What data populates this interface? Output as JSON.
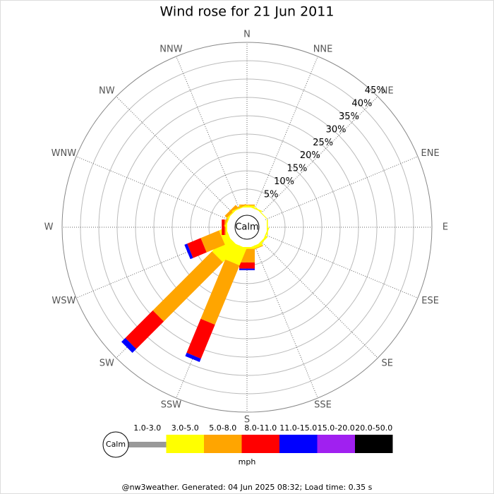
{
  "chart_data": {
    "type": "windrose",
    "title": "Wind rose for 21 Jun 2011",
    "categories": [
      "N",
      "NNE",
      "NE",
      "ENE",
      "E",
      "ESE",
      "SE",
      "SSE",
      "S",
      "SSW",
      "SW",
      "WSW",
      "W",
      "WNW",
      "NW",
      "NNW"
    ],
    "series": [
      {
        "name": "1.0-3.0",
        "color": "#999999",
        "values": [
          0,
          0,
          0,
          0,
          0,
          0,
          0,
          0,
          0,
          0,
          0,
          0,
          0,
          0,
          0,
          0
        ]
      },
      {
        "name": "3.0-5.0",
        "color": "#ffff00",
        "values": [
          0.5,
          0.3,
          0.2,
          0,
          0.3,
          0.3,
          0.5,
          0.8,
          0.5,
          5,
          6,
          2,
          0.4,
          0.3,
          0.3,
          0.3
        ]
      },
      {
        "name": "5.0-8.0",
        "color": "#ffa500",
        "values": [
          0.3,
          0,
          0,
          0,
          0,
          0,
          0,
          0.2,
          3.7,
          17.5,
          22.8,
          5.4,
          0.3,
          0.3,
          0.8,
          0.3
        ]
      },
      {
        "name": "8.0-11.0",
        "color": "#ff0000",
        "values": [
          0,
          0,
          0,
          0,
          0,
          0,
          0,
          0,
          1.7,
          10,
          10.6,
          4,
          0.8,
          0,
          0,
          0
        ]
      },
      {
        "name": "11.0-15.0",
        "color": "#0000ff",
        "values": [
          0,
          0,
          0,
          0,
          0,
          0,
          0,
          0,
          0.4,
          1,
          1.5,
          0.8,
          0,
          0,
          0,
          0
        ]
      },
      {
        "name": "15.0-20.0",
        "color": "#a020f0",
        "values": [
          0,
          0,
          0,
          0,
          0,
          0,
          0,
          0,
          0,
          0,
          0,
          0,
          0,
          0,
          0,
          0
        ]
      },
      {
        "name": "20.0-50.0",
        "color": "#000000",
        "values": [
          0,
          0,
          0,
          0,
          0,
          0,
          0,
          0,
          0,
          0,
          0,
          0,
          0,
          0,
          0,
          0
        ]
      }
    ],
    "rlim": [
      0,
      45
    ],
    "rticks": [
      {
        "value": 5,
        "label": "5%"
      },
      {
        "value": 10,
        "label": "10%"
      },
      {
        "value": 15,
        "label": "15%"
      },
      {
        "value": 20,
        "label": "20%"
      },
      {
        "value": 25,
        "label": "25%"
      },
      {
        "value": 30,
        "label": "30%"
      },
      {
        "value": 35,
        "label": "35%"
      },
      {
        "value": 40,
        "label": "40%"
      },
      {
        "value": 45,
        "label": "45%"
      }
    ],
    "center_label": "Calm",
    "legend_calm": "Calm",
    "unit": "mph",
    "footer": "@nw3weather. Generated: 04 Jun 2025 08:32; Load time: 0.35 s"
  }
}
